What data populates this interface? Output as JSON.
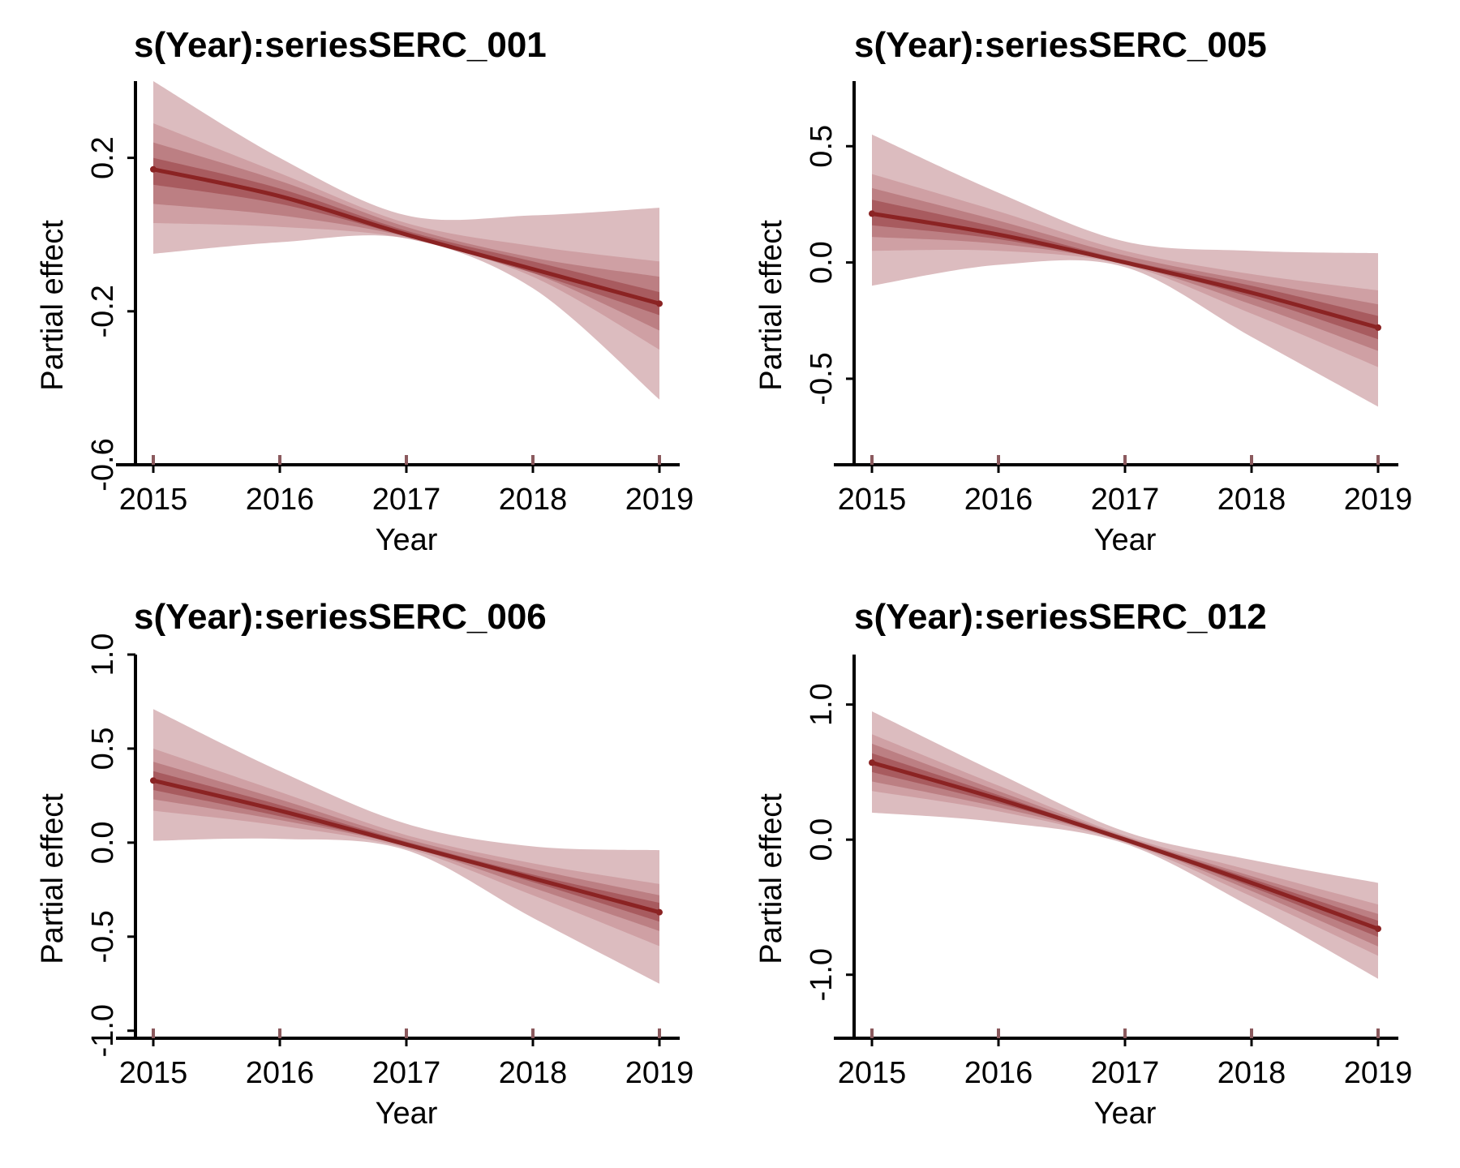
{
  "chart_data": [
    {
      "type": "area",
      "title": "s(Year):seriesSERC_001",
      "xlabel": "Year",
      "ylabel": "Partial effect",
      "x": [
        2015,
        2016,
        2017,
        2018,
        2019
      ],
      "x_ticks": [
        2015,
        2016,
        2017,
        2018,
        2019
      ],
      "y_ticks": [
        0.2,
        -0.2,
        -0.6
      ],
      "y_tick_labels": [
        "0.2",
        "-0.2",
        "-0.6"
      ],
      "ylim": [
        -0.6,
        0.4
      ],
      "rug": [
        2015,
        2016,
        2017,
        2018,
        2019
      ],
      "series": [
        {
          "name": "",
          "role": "median",
          "values": [
            0.17,
            0.1,
            0.0,
            -0.09,
            -0.18
          ]
        },
        {
          "name": "",
          "role": "band_outer",
          "lower": [
            -0.05,
            -0.02,
            -0.01,
            -0.14,
            -0.43
          ],
          "upper": [
            0.4,
            0.2,
            0.05,
            0.05,
            0.07
          ]
        },
        {
          "name": "",
          "role": "band_2",
          "lower": [
            0.03,
            0.02,
            -0.01,
            -0.11,
            -0.3
          ],
          "upper": [
            0.29,
            0.16,
            0.03,
            -0.03,
            -0.07
          ]
        },
        {
          "name": "",
          "role": "band_3",
          "lower": [
            0.08,
            0.05,
            -0.005,
            -0.1,
            -0.25
          ],
          "upper": [
            0.24,
            0.14,
            0.02,
            -0.06,
            -0.11
          ]
        },
        {
          "name": "",
          "role": "band_inner",
          "lower": [
            0.13,
            0.08,
            -0.005,
            -0.1,
            -0.21
          ],
          "upper": [
            0.2,
            0.12,
            0.01,
            -0.07,
            -0.15
          ]
        }
      ]
    },
    {
      "type": "area",
      "title": "s(Year):seriesSERC_005",
      "xlabel": "Year",
      "ylabel": "Partial effect",
      "x": [
        2015,
        2016,
        2017,
        2018,
        2019
      ],
      "x_ticks": [
        2015,
        2016,
        2017,
        2018,
        2019
      ],
      "y_ticks": [
        0.5,
        0.0,
        -0.5
      ],
      "y_tick_labels": [
        "0.5",
        "0.0",
        "-0.5"
      ],
      "ylim": [
        -0.87,
        0.78
      ],
      "rug": [
        2015,
        2016,
        2017,
        2018,
        2019
      ],
      "series": [
        {
          "name": "",
          "role": "median",
          "values": [
            0.21,
            0.12,
            0.0,
            -0.13,
            -0.28
          ]
        },
        {
          "name": "",
          "role": "band_outer",
          "lower": [
            -0.1,
            -0.01,
            -0.02,
            -0.32,
            -0.62
          ],
          "upper": [
            0.55,
            0.3,
            0.09,
            0.05,
            0.04
          ]
        },
        {
          "name": "",
          "role": "band_2",
          "lower": [
            0.05,
            0.05,
            -0.01,
            -0.22,
            -0.45
          ],
          "upper": [
            0.38,
            0.22,
            0.05,
            -0.05,
            -0.12
          ]
        },
        {
          "name": "",
          "role": "band_3",
          "lower": [
            0.11,
            0.08,
            -0.005,
            -0.18,
            -0.38
          ],
          "upper": [
            0.32,
            0.18,
            0.03,
            -0.08,
            -0.18
          ]
        },
        {
          "name": "",
          "role": "band_inner",
          "lower": [
            0.16,
            0.1,
            -0.005,
            -0.15,
            -0.33
          ],
          "upper": [
            0.27,
            0.15,
            0.01,
            -0.1,
            -0.23
          ]
        }
      ]
    },
    {
      "type": "area",
      "title": "s(Year):seriesSERC_006",
      "xlabel": "Year",
      "ylabel": "Partial effect",
      "x": [
        2015,
        2016,
        2017,
        2018,
        2019
      ],
      "x_ticks": [
        2015,
        2016,
        2017,
        2018,
        2019
      ],
      "y_ticks": [
        1.0,
        0.5,
        0.0,
        -0.5,
        -1.0
      ],
      "y_tick_labels": [
        "1.0",
        "0.5",
        "0.0",
        "-0.5",
        "-1.0"
      ],
      "ylim": [
        -1.04,
        1.0
      ],
      "rug": [
        2015,
        2016,
        2017,
        2018,
        2019
      ],
      "series": [
        {
          "name": "",
          "role": "median",
          "values": [
            0.33,
            0.17,
            -0.01,
            -0.19,
            -0.37
          ]
        },
        {
          "name": "",
          "role": "band_outer",
          "lower": [
            0.01,
            0.02,
            -0.04,
            -0.4,
            -0.75
          ],
          "upper": [
            0.71,
            0.38,
            0.1,
            -0.02,
            -0.04
          ]
        },
        {
          "name": "",
          "role": "band_2",
          "lower": [
            0.17,
            0.09,
            -0.03,
            -0.28,
            -0.55
          ],
          "upper": [
            0.5,
            0.27,
            0.04,
            -0.11,
            -0.22
          ]
        },
        {
          "name": "",
          "role": "band_3",
          "lower": [
            0.23,
            0.12,
            -0.02,
            -0.24,
            -0.47
          ],
          "upper": [
            0.43,
            0.23,
            0.02,
            -0.14,
            -0.28
          ]
        },
        {
          "name": "",
          "role": "band_inner",
          "lower": [
            0.28,
            0.14,
            -0.015,
            -0.21,
            -0.42
          ],
          "upper": [
            0.38,
            0.2,
            0.005,
            -0.17,
            -0.32
          ]
        }
      ]
    },
    {
      "type": "area",
      "title": "s(Year):seriesSERC_012",
      "xlabel": "Year",
      "ylabel": "Partial effect",
      "x": [
        2015,
        2016,
        2017,
        2018,
        2019
      ],
      "x_ticks": [
        2015,
        2016,
        2017,
        2018,
        2019
      ],
      "y_ticks": [
        1.0,
        0.0,
        -1.0
      ],
      "y_tick_labels": [
        "1.0",
        "0.0",
        "-1.0"
      ],
      "ylim": [
        -1.47,
        1.37
      ],
      "rug": [
        2015,
        2016,
        2017,
        2018,
        2019
      ],
      "series": [
        {
          "name": "",
          "role": "median",
          "values": [
            0.57,
            0.3,
            0.0,
            -0.32,
            -0.66
          ]
        },
        {
          "name": "",
          "role": "band_outer",
          "lower": [
            0.2,
            0.13,
            -0.03,
            -0.5,
            -1.03
          ],
          "upper": [
            0.95,
            0.49,
            0.06,
            -0.15,
            -0.32
          ]
        },
        {
          "name": "",
          "role": "band_2",
          "lower": [
            0.36,
            0.21,
            -0.02,
            -0.42,
            -0.86
          ],
          "upper": [
            0.78,
            0.4,
            0.03,
            -0.23,
            -0.48
          ]
        },
        {
          "name": "",
          "role": "band_3",
          "lower": [
            0.43,
            0.24,
            -0.01,
            -0.38,
            -0.79
          ],
          "upper": [
            0.71,
            0.36,
            0.02,
            -0.27,
            -0.55
          ]
        },
        {
          "name": "",
          "role": "band_inner",
          "lower": [
            0.5,
            0.27,
            -0.005,
            -0.35,
            -0.72
          ],
          "upper": [
            0.64,
            0.33,
            0.01,
            -0.29,
            -0.6
          ]
        }
      ]
    }
  ],
  "colors": {
    "band_outer": "#dcbcbf",
    "band_2": "#cfa0a4",
    "band_3": "#bc7f83",
    "band_inner": "#a85b5f",
    "median": "#8b2323",
    "rug": "#8b5a5e",
    "axis": "#000000"
  }
}
